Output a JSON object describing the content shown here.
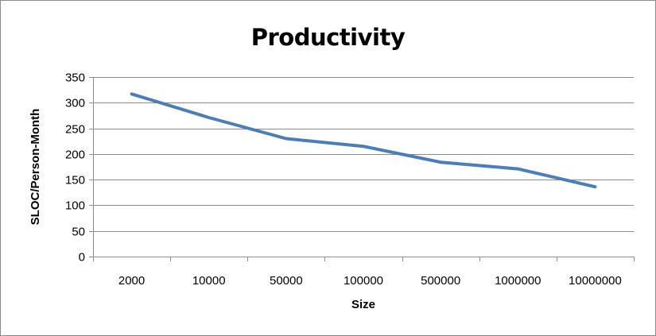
{
  "chart_data": {
    "type": "line",
    "title": "Productivity",
    "xlabel": "Size",
    "ylabel": "SLOC/Person-Month",
    "categories": [
      "2000",
      "10000",
      "50000",
      "100000",
      "500000",
      "1000000",
      "10000000"
    ],
    "series": [
      {
        "values": [
          317,
          271,
          230,
          215,
          184,
          171,
          136
        ],
        "color": "#4a7ebb"
      }
    ],
    "ylim": [
      0,
      350
    ],
    "yticks": [
      0,
      50,
      100,
      150,
      200,
      250,
      300,
      350
    ],
    "grid": true,
    "legend": "none",
    "colors": {
      "line": "#4a7ebb",
      "grid": "#8c8c8c",
      "axis": "#8c8c8c"
    }
  }
}
